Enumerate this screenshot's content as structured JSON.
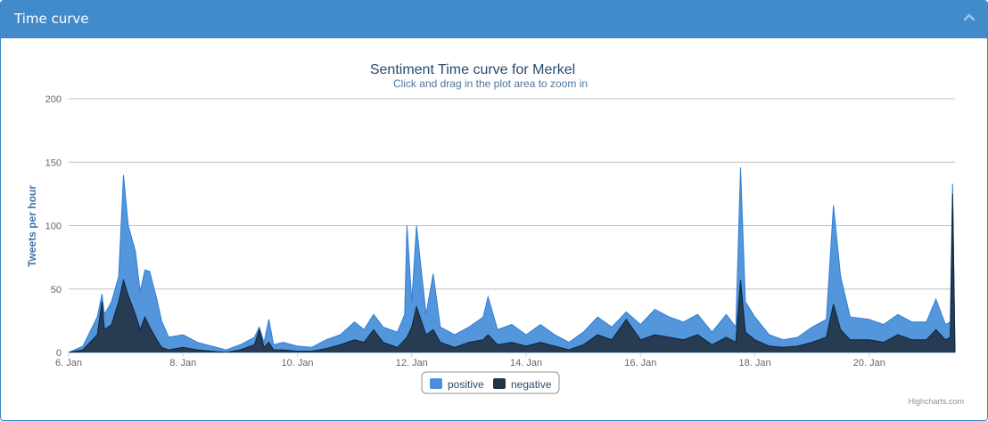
{
  "panel": {
    "title": "Time curve"
  },
  "icons": {
    "collapse": "chevron-up-icon"
  },
  "colors": {
    "header_bg": "#428bca",
    "positive": "#4a90d9",
    "negative": "#243446",
    "title": "#274b6d",
    "subtitle": "#4d759e",
    "axis_label": "#4572a7"
  },
  "chart_data": {
    "type": "area",
    "title": "Sentiment Time curve for Merkel",
    "subtitle": "Click and drag in the plot area to zoom in",
    "ylabel": "Tweets per hour",
    "xlabel": "",
    "xlim": [
      "2014-01-06",
      "2014-01-21T12:00"
    ],
    "ylim": [
      0,
      200
    ],
    "y_ticks": [
      0,
      50,
      100,
      150,
      200
    ],
    "x_ticks": [
      {
        "date": "2014-01-06",
        "label": "6. Jan"
      },
      {
        "date": "2014-01-08",
        "label": "8. Jan"
      },
      {
        "date": "2014-01-10",
        "label": "10. Jan"
      },
      {
        "date": "2014-01-12",
        "label": "12. Jan"
      },
      {
        "date": "2014-01-14",
        "label": "14. Jan"
      },
      {
        "date": "2014-01-16",
        "label": "16. Jan"
      },
      {
        "date": "2014-01-18",
        "label": "18. Jan"
      },
      {
        "date": "2014-01-20",
        "label": "20. Jan"
      }
    ],
    "grid": true,
    "legend_position": "bottom-center",
    "credits": "Highcharts.com",
    "series": [
      {
        "name": "positive",
        "color": "#4a90d9",
        "points": [
          [
            "2014-01-06T00:00",
            0
          ],
          [
            "2014-01-06T06:00",
            5
          ],
          [
            "2014-01-06T12:00",
            28
          ],
          [
            "2014-01-06T14:00",
            46
          ],
          [
            "2014-01-06T15:00",
            30
          ],
          [
            "2014-01-06T18:00",
            40
          ],
          [
            "2014-01-06T21:00",
            60
          ],
          [
            "2014-01-06T23:00",
            140
          ],
          [
            "2014-01-07T01:00",
            100
          ],
          [
            "2014-01-07T04:00",
            80
          ],
          [
            "2014-01-07T06:00",
            48
          ],
          [
            "2014-01-07T08:00",
            65
          ],
          [
            "2014-01-07T10:00",
            64
          ],
          [
            "2014-01-07T13:00",
            42
          ],
          [
            "2014-01-07T15:00",
            25
          ],
          [
            "2014-01-07T18:00",
            12
          ],
          [
            "2014-01-08T00:00",
            14
          ],
          [
            "2014-01-08T06:00",
            8
          ],
          [
            "2014-01-08T12:00",
            5
          ],
          [
            "2014-01-08T18:00",
            2
          ],
          [
            "2014-01-09T00:00",
            6
          ],
          [
            "2014-01-09T06:00",
            12
          ],
          [
            "2014-01-09T08:00",
            20
          ],
          [
            "2014-01-09T10:00",
            8
          ],
          [
            "2014-01-09T12:00",
            26
          ],
          [
            "2014-01-09T14:00",
            6
          ],
          [
            "2014-01-09T18:00",
            8
          ],
          [
            "2014-01-10T00:00",
            5
          ],
          [
            "2014-01-10T06:00",
            4
          ],
          [
            "2014-01-10T12:00",
            10
          ],
          [
            "2014-01-10T18:00",
            14
          ],
          [
            "2014-01-11T00:00",
            24
          ],
          [
            "2014-01-11T04:00",
            18
          ],
          [
            "2014-01-11T08:00",
            30
          ],
          [
            "2014-01-11T12:00",
            20
          ],
          [
            "2014-01-11T18:00",
            16
          ],
          [
            "2014-01-11T21:00",
            30
          ],
          [
            "2014-01-11T22:00",
            100
          ],
          [
            "2014-01-12T00:00",
            40
          ],
          [
            "2014-01-12T02:00",
            100
          ],
          [
            "2014-01-12T06:00",
            30
          ],
          [
            "2014-01-12T09:00",
            62
          ],
          [
            "2014-01-12T12:00",
            20
          ],
          [
            "2014-01-12T18:00",
            14
          ],
          [
            "2014-01-13T00:00",
            20
          ],
          [
            "2014-01-13T06:00",
            28
          ],
          [
            "2014-01-13T08:00",
            44
          ],
          [
            "2014-01-13T12:00",
            18
          ],
          [
            "2014-01-13T18:00",
            22
          ],
          [
            "2014-01-14T00:00",
            14
          ],
          [
            "2014-01-14T06:00",
            22
          ],
          [
            "2014-01-14T12:00",
            14
          ],
          [
            "2014-01-14T18:00",
            8
          ],
          [
            "2014-01-15T00:00",
            16
          ],
          [
            "2014-01-15T06:00",
            28
          ],
          [
            "2014-01-15T12:00",
            20
          ],
          [
            "2014-01-15T18:00",
            32
          ],
          [
            "2014-01-16T00:00",
            22
          ],
          [
            "2014-01-16T06:00",
            34
          ],
          [
            "2014-01-16T12:00",
            28
          ],
          [
            "2014-01-16T18:00",
            24
          ],
          [
            "2014-01-17T00:00",
            30
          ],
          [
            "2014-01-17T06:00",
            16
          ],
          [
            "2014-01-17T12:00",
            30
          ],
          [
            "2014-01-17T16:00",
            20
          ],
          [
            "2014-01-17T18:00",
            146
          ],
          [
            "2014-01-17T20:00",
            40
          ],
          [
            "2014-01-18T00:00",
            28
          ],
          [
            "2014-01-18T06:00",
            14
          ],
          [
            "2014-01-18T12:00",
            10
          ],
          [
            "2014-01-18T18:00",
            12
          ],
          [
            "2014-01-19T00:00",
            20
          ],
          [
            "2014-01-19T06:00",
            26
          ],
          [
            "2014-01-19T09:00",
            116
          ],
          [
            "2014-01-19T12:00",
            60
          ],
          [
            "2014-01-19T16:00",
            28
          ],
          [
            "2014-01-20T00:00",
            26
          ],
          [
            "2014-01-20T06:00",
            22
          ],
          [
            "2014-01-20T12:00",
            30
          ],
          [
            "2014-01-20T18:00",
            24
          ],
          [
            "2014-01-21T00:00",
            24
          ],
          [
            "2014-01-21T04:00",
            42
          ],
          [
            "2014-01-21T08:00",
            22
          ],
          [
            "2014-01-21T10:00",
            24
          ],
          [
            "2014-01-21T11:00",
            133
          ],
          [
            "2014-01-21T12:00",
            0
          ]
        ]
      },
      {
        "name": "negative",
        "color": "#243446",
        "points": [
          [
            "2014-01-06T00:00",
            0
          ],
          [
            "2014-01-06T06:00",
            2
          ],
          [
            "2014-01-06T12:00",
            14
          ],
          [
            "2014-01-06T14:00",
            40
          ],
          [
            "2014-01-06T15:00",
            18
          ],
          [
            "2014-01-06T18:00",
            22
          ],
          [
            "2014-01-06T21:00",
            40
          ],
          [
            "2014-01-06T23:00",
            57
          ],
          [
            "2014-01-07T01:00",
            45
          ],
          [
            "2014-01-07T04:00",
            30
          ],
          [
            "2014-01-07T06:00",
            18
          ],
          [
            "2014-01-07T08:00",
            28
          ],
          [
            "2014-01-07T10:00",
            20
          ],
          [
            "2014-01-07T13:00",
            10
          ],
          [
            "2014-01-07T15:00",
            4
          ],
          [
            "2014-01-07T18:00",
            2
          ],
          [
            "2014-01-08T00:00",
            4
          ],
          [
            "2014-01-08T06:00",
            2
          ],
          [
            "2014-01-08T12:00",
            1
          ],
          [
            "2014-01-08T18:00",
            0
          ],
          [
            "2014-01-09T00:00",
            2
          ],
          [
            "2014-01-09T06:00",
            6
          ],
          [
            "2014-01-09T08:00",
            18
          ],
          [
            "2014-01-09T10:00",
            4
          ],
          [
            "2014-01-09T12:00",
            8
          ],
          [
            "2014-01-09T14:00",
            2
          ],
          [
            "2014-01-09T18:00",
            2
          ],
          [
            "2014-01-10T00:00",
            1
          ],
          [
            "2014-01-10T06:00",
            1
          ],
          [
            "2014-01-10T12:00",
            3
          ],
          [
            "2014-01-10T18:00",
            6
          ],
          [
            "2014-01-11T00:00",
            10
          ],
          [
            "2014-01-11T04:00",
            8
          ],
          [
            "2014-01-11T08:00",
            18
          ],
          [
            "2014-01-11T12:00",
            8
          ],
          [
            "2014-01-11T18:00",
            4
          ],
          [
            "2014-01-11T21:00",
            10
          ],
          [
            "2014-01-11T22:00",
            12
          ],
          [
            "2014-01-12T00:00",
            20
          ],
          [
            "2014-01-12T02:00",
            36
          ],
          [
            "2014-01-12T06:00",
            14
          ],
          [
            "2014-01-12T09:00",
            18
          ],
          [
            "2014-01-12T12:00",
            8
          ],
          [
            "2014-01-12T18:00",
            4
          ],
          [
            "2014-01-13T00:00",
            8
          ],
          [
            "2014-01-13T06:00",
            10
          ],
          [
            "2014-01-13T08:00",
            14
          ],
          [
            "2014-01-13T12:00",
            6
          ],
          [
            "2014-01-13T18:00",
            8
          ],
          [
            "2014-01-14T00:00",
            5
          ],
          [
            "2014-01-14T06:00",
            8
          ],
          [
            "2014-01-14T12:00",
            5
          ],
          [
            "2014-01-14T18:00",
            2
          ],
          [
            "2014-01-15T00:00",
            6
          ],
          [
            "2014-01-15T06:00",
            14
          ],
          [
            "2014-01-15T12:00",
            10
          ],
          [
            "2014-01-15T18:00",
            26
          ],
          [
            "2014-01-16T00:00",
            10
          ],
          [
            "2014-01-16T06:00",
            14
          ],
          [
            "2014-01-16T12:00",
            12
          ],
          [
            "2014-01-16T18:00",
            10
          ],
          [
            "2014-01-17T00:00",
            14
          ],
          [
            "2014-01-17T06:00",
            6
          ],
          [
            "2014-01-17T12:00",
            12
          ],
          [
            "2014-01-17T16:00",
            8
          ],
          [
            "2014-01-17T18:00",
            57
          ],
          [
            "2014-01-17T20:00",
            16
          ],
          [
            "2014-01-18T00:00",
            10
          ],
          [
            "2014-01-18T06:00",
            5
          ],
          [
            "2014-01-18T12:00",
            4
          ],
          [
            "2014-01-18T18:00",
            5
          ],
          [
            "2014-01-19T00:00",
            8
          ],
          [
            "2014-01-19T06:00",
            12
          ],
          [
            "2014-01-19T09:00",
            38
          ],
          [
            "2014-01-19T12:00",
            18
          ],
          [
            "2014-01-19T16:00",
            10
          ],
          [
            "2014-01-20T00:00",
            10
          ],
          [
            "2014-01-20T06:00",
            8
          ],
          [
            "2014-01-20T12:00",
            14
          ],
          [
            "2014-01-20T18:00",
            10
          ],
          [
            "2014-01-21T00:00",
            10
          ],
          [
            "2014-01-21T04:00",
            18
          ],
          [
            "2014-01-21T08:00",
            10
          ],
          [
            "2014-01-21T10:00",
            12
          ],
          [
            "2014-01-21T11:00",
            125
          ],
          [
            "2014-01-21T12:00",
            0
          ]
        ]
      }
    ]
  }
}
